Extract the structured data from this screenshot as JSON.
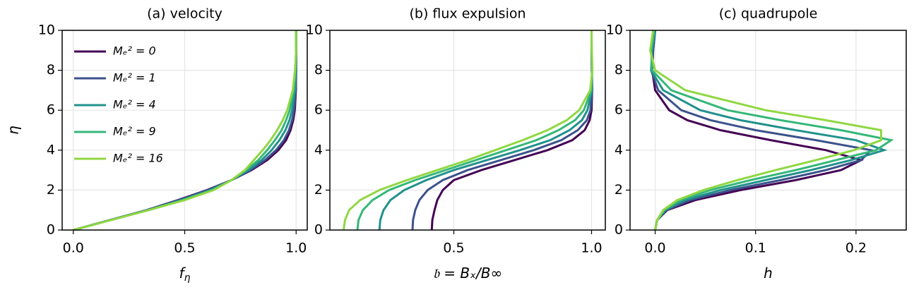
{
  "chart_data": [
    {
      "type": "line",
      "title": "(a) velocity",
      "xlabel": {
        "base": "f",
        "sub": "η"
      },
      "ylabel": "η",
      "legend": "upper left",
      "grid": true,
      "xlim": [
        -0.05,
        1.05
      ],
      "xticks": [
        {
          "value": 0,
          "label": "0.0"
        },
        0.5,
        {
          "value": 1,
          "label": "1.0"
        }
      ],
      "ylim": [
        0,
        10
      ],
      "yticks": [
        0,
        2,
        4,
        6,
        8,
        10
      ],
      "y": [
        0,
        0.5,
        1,
        1.5,
        2,
        2.5,
        3,
        3.5,
        4,
        4.5,
        5,
        5.5,
        6,
        7,
        8,
        9,
        10
      ],
      "series": [
        {
          "name": "Mₑ² = 0",
          "color": "#440154",
          "x": [
            0,
            0.165,
            0.33,
            0.47,
            0.6,
            0.71,
            0.8,
            0.87,
            0.92,
            0.955,
            0.975,
            0.987,
            0.994,
            0.999,
            1,
            1,
            1
          ]
        },
        {
          "name": "Mₑ² = 1",
          "color": "#3b528b",
          "x": [
            0,
            0.166,
            0.332,
            0.475,
            0.605,
            0.71,
            0.795,
            0.86,
            0.91,
            0.945,
            0.968,
            0.982,
            0.991,
            0.998,
            1,
            1,
            1
          ]
        },
        {
          "name": "Mₑ² = 4",
          "color": "#21918c",
          "x": [
            0,
            0.167,
            0.335,
            0.485,
            0.615,
            0.71,
            0.785,
            0.845,
            0.89,
            0.925,
            0.952,
            0.97,
            0.982,
            0.995,
            0.999,
            1,
            1
          ]
        },
        {
          "name": "Mₑ² = 9",
          "color": "#35b779",
          "x": [
            0,
            0.168,
            0.338,
            0.493,
            0.623,
            0.71,
            0.775,
            0.83,
            0.87,
            0.905,
            0.935,
            0.955,
            0.971,
            0.99,
            0.997,
            1,
            1
          ]
        },
        {
          "name": "Mₑ² = 16",
          "color": "#90d743",
          "x": [
            0,
            0.17,
            0.34,
            0.5,
            0.63,
            0.71,
            0.77,
            0.81,
            0.85,
            0.885,
            0.915,
            0.94,
            0.96,
            0.985,
            0.995,
            1,
            1
          ]
        }
      ]
    },
    {
      "type": "line",
      "title": "(b) flux expulsion",
      "xlabel": {
        "base": "𝔟 = Bₓ/B∞"
      },
      "grid": true,
      "xlim": [
        0.05,
        1.05
      ],
      "xticks": [
        0.5,
        {
          "value": 1,
          "label": "1.0"
        }
      ],
      "ylim": [
        0,
        10
      ],
      "yticks": [
        0,
        2,
        4,
        6,
        8,
        10
      ],
      "y": [
        0,
        0.5,
        1,
        1.5,
        2,
        2.5,
        3,
        3.5,
        4,
        4.5,
        5,
        5.5,
        6,
        7,
        8,
        9,
        10
      ],
      "series": [
        {
          "color": "#440154",
          "x": [
            0.42,
            0.422,
            0.43,
            0.44,
            0.46,
            0.5,
            0.6,
            0.72,
            0.84,
            0.93,
            0.975,
            0.993,
            1.0,
            1.002,
            1.001,
            1,
            1
          ]
        },
        {
          "color": "#3b528b",
          "x": [
            0.35,
            0.352,
            0.36,
            0.375,
            0.405,
            0.46,
            0.55,
            0.67,
            0.79,
            0.89,
            0.95,
            0.983,
            0.996,
            1.002,
            1.001,
            1,
            1
          ]
        },
        {
          "color": "#21918c",
          "x": [
            0.23,
            0.233,
            0.245,
            0.27,
            0.32,
            0.4,
            0.5,
            0.62,
            0.74,
            0.85,
            0.92,
            0.965,
            0.985,
            1.001,
            1.002,
            1,
            1
          ]
        },
        {
          "color": "#35b779",
          "x": [
            0.15,
            0.154,
            0.17,
            0.205,
            0.265,
            0.36,
            0.47,
            0.58,
            0.69,
            0.8,
            0.88,
            0.94,
            0.972,
            0.999,
            1.002,
            1,
            1
          ]
        },
        {
          "color": "#90d743",
          "x": [
            0.1,
            0.105,
            0.12,
            0.16,
            0.23,
            0.33,
            0.44,
            0.55,
            0.65,
            0.75,
            0.84,
            0.91,
            0.955,
            0.995,
            1.003,
            1.001,
            1
          ]
        }
      ]
    },
    {
      "type": "line",
      "title": "(c) quadrupole",
      "xlabel": {
        "base": "h"
      },
      "grid": true,
      "xlim": [
        -0.025,
        0.25
      ],
      "xticks": [
        {
          "value": 0,
          "label": "0.0"
        },
        0.1,
        0.2
      ],
      "ylim": [
        0,
        10
      ],
      "yticks": [
        0,
        2,
        4,
        6,
        8,
        10
      ],
      "y": [
        0,
        0.5,
        1,
        1.5,
        2,
        2.5,
        3,
        3.5,
        4,
        4.5,
        5,
        5.5,
        6,
        7,
        8,
        9,
        10
      ],
      "series": [
        {
          "color": "#440154",
          "x": [
            0,
            0.002,
            0.012,
            0.04,
            0.085,
            0.14,
            0.185,
            0.205,
            0.17,
            0.115,
            0.065,
            0.032,
            0.014,
            0,
            -0.003,
            -0.002,
            0
          ]
        },
        {
          "color": "#3b528b",
          "x": [
            0,
            0.002,
            0.011,
            0.035,
            0.075,
            0.125,
            0.17,
            0.205,
            0.215,
            0.16,
            0.1,
            0.055,
            0.026,
            0.003,
            -0.004,
            -0.002,
            0
          ]
        },
        {
          "color": "#21918c",
          "x": [
            0,
            0.002,
            0.01,
            0.03,
            0.065,
            0.11,
            0.155,
            0.195,
            0.228,
            0.2,
            0.14,
            0.085,
            0.045,
            0.008,
            -0.004,
            -0.003,
            0
          ]
        },
        {
          "color": "#35b779",
          "x": [
            0,
            0.002,
            0.009,
            0.025,
            0.055,
            0.095,
            0.14,
            0.18,
            0.22,
            0.235,
            0.185,
            0.125,
            0.072,
            0.016,
            -0.003,
            -0.004,
            -0.001
          ]
        },
        {
          "color": "#90d743",
          "x": [
            0,
            0.002,
            0.008,
            0.022,
            0.048,
            0.082,
            0.12,
            0.16,
            0.198,
            0.225,
            0.225,
            0.17,
            0.11,
            0.03,
            0,
            -0.005,
            -0.002
          ]
        }
      ]
    }
  ]
}
